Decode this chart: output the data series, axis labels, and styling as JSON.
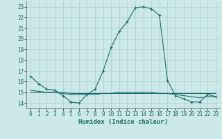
{
  "xlabel": "Humidex (Indice chaleur)",
  "background_color": "#cce8e8",
  "grid_color": "#aacccc",
  "line_color": "#1a6b6b",
  "xlim": [
    -0.5,
    23.5
  ],
  "ylim": [
    13.5,
    23.5
  ],
  "yticks": [
    14,
    15,
    16,
    17,
    18,
    19,
    20,
    21,
    22,
    23
  ],
  "xticks": [
    0,
    1,
    2,
    3,
    4,
    5,
    6,
    7,
    8,
    9,
    10,
    11,
    12,
    13,
    14,
    15,
    16,
    17,
    18,
    19,
    20,
    21,
    22,
    23
  ],
  "line1_x": [
    0,
    1,
    2,
    3,
    4,
    5,
    6,
    7,
    8,
    9,
    10,
    11,
    12,
    13,
    14,
    15,
    16,
    17,
    18,
    19,
    20,
    21,
    22,
    23
  ],
  "line1_y": [
    16.5,
    15.8,
    15.3,
    15.2,
    14.7,
    14.1,
    14.0,
    14.8,
    15.3,
    17.0,
    19.2,
    20.7,
    21.6,
    22.9,
    23.0,
    22.8,
    22.2,
    16.1,
    14.7,
    14.4,
    14.1,
    14.1,
    14.8,
    14.6
  ],
  "line2_x": [
    0,
    1,
    2,
    3,
    4,
    5,
    6,
    7,
    8,
    9,
    10,
    11,
    12,
    13,
    14,
    15,
    16,
    17,
    18,
    19,
    20,
    21,
    22,
    23
  ],
  "line2_y": [
    15.0,
    15.0,
    15.0,
    15.0,
    15.0,
    14.9,
    14.9,
    14.9,
    14.9,
    14.9,
    14.9,
    14.9,
    14.9,
    14.9,
    14.9,
    14.9,
    14.9,
    14.9,
    14.9,
    14.9,
    14.9,
    14.9,
    14.9,
    14.9
  ],
  "line3_x": [
    0,
    1,
    2,
    3,
    4,
    5,
    6,
    7,
    8,
    9,
    10,
    11,
    12,
    13,
    14,
    15,
    16,
    17,
    18,
    19,
    20,
    21,
    22,
    23
  ],
  "line3_y": [
    15.2,
    15.1,
    15.0,
    15.0,
    14.9,
    14.8,
    14.8,
    14.8,
    14.8,
    14.9,
    14.9,
    15.0,
    15.0,
    15.0,
    15.0,
    15.0,
    14.9,
    14.9,
    14.8,
    14.7,
    14.6,
    14.5,
    14.6,
    14.6
  ],
  "xlabel_fontsize": 6.5,
  "tick_fontsize": 5.5
}
